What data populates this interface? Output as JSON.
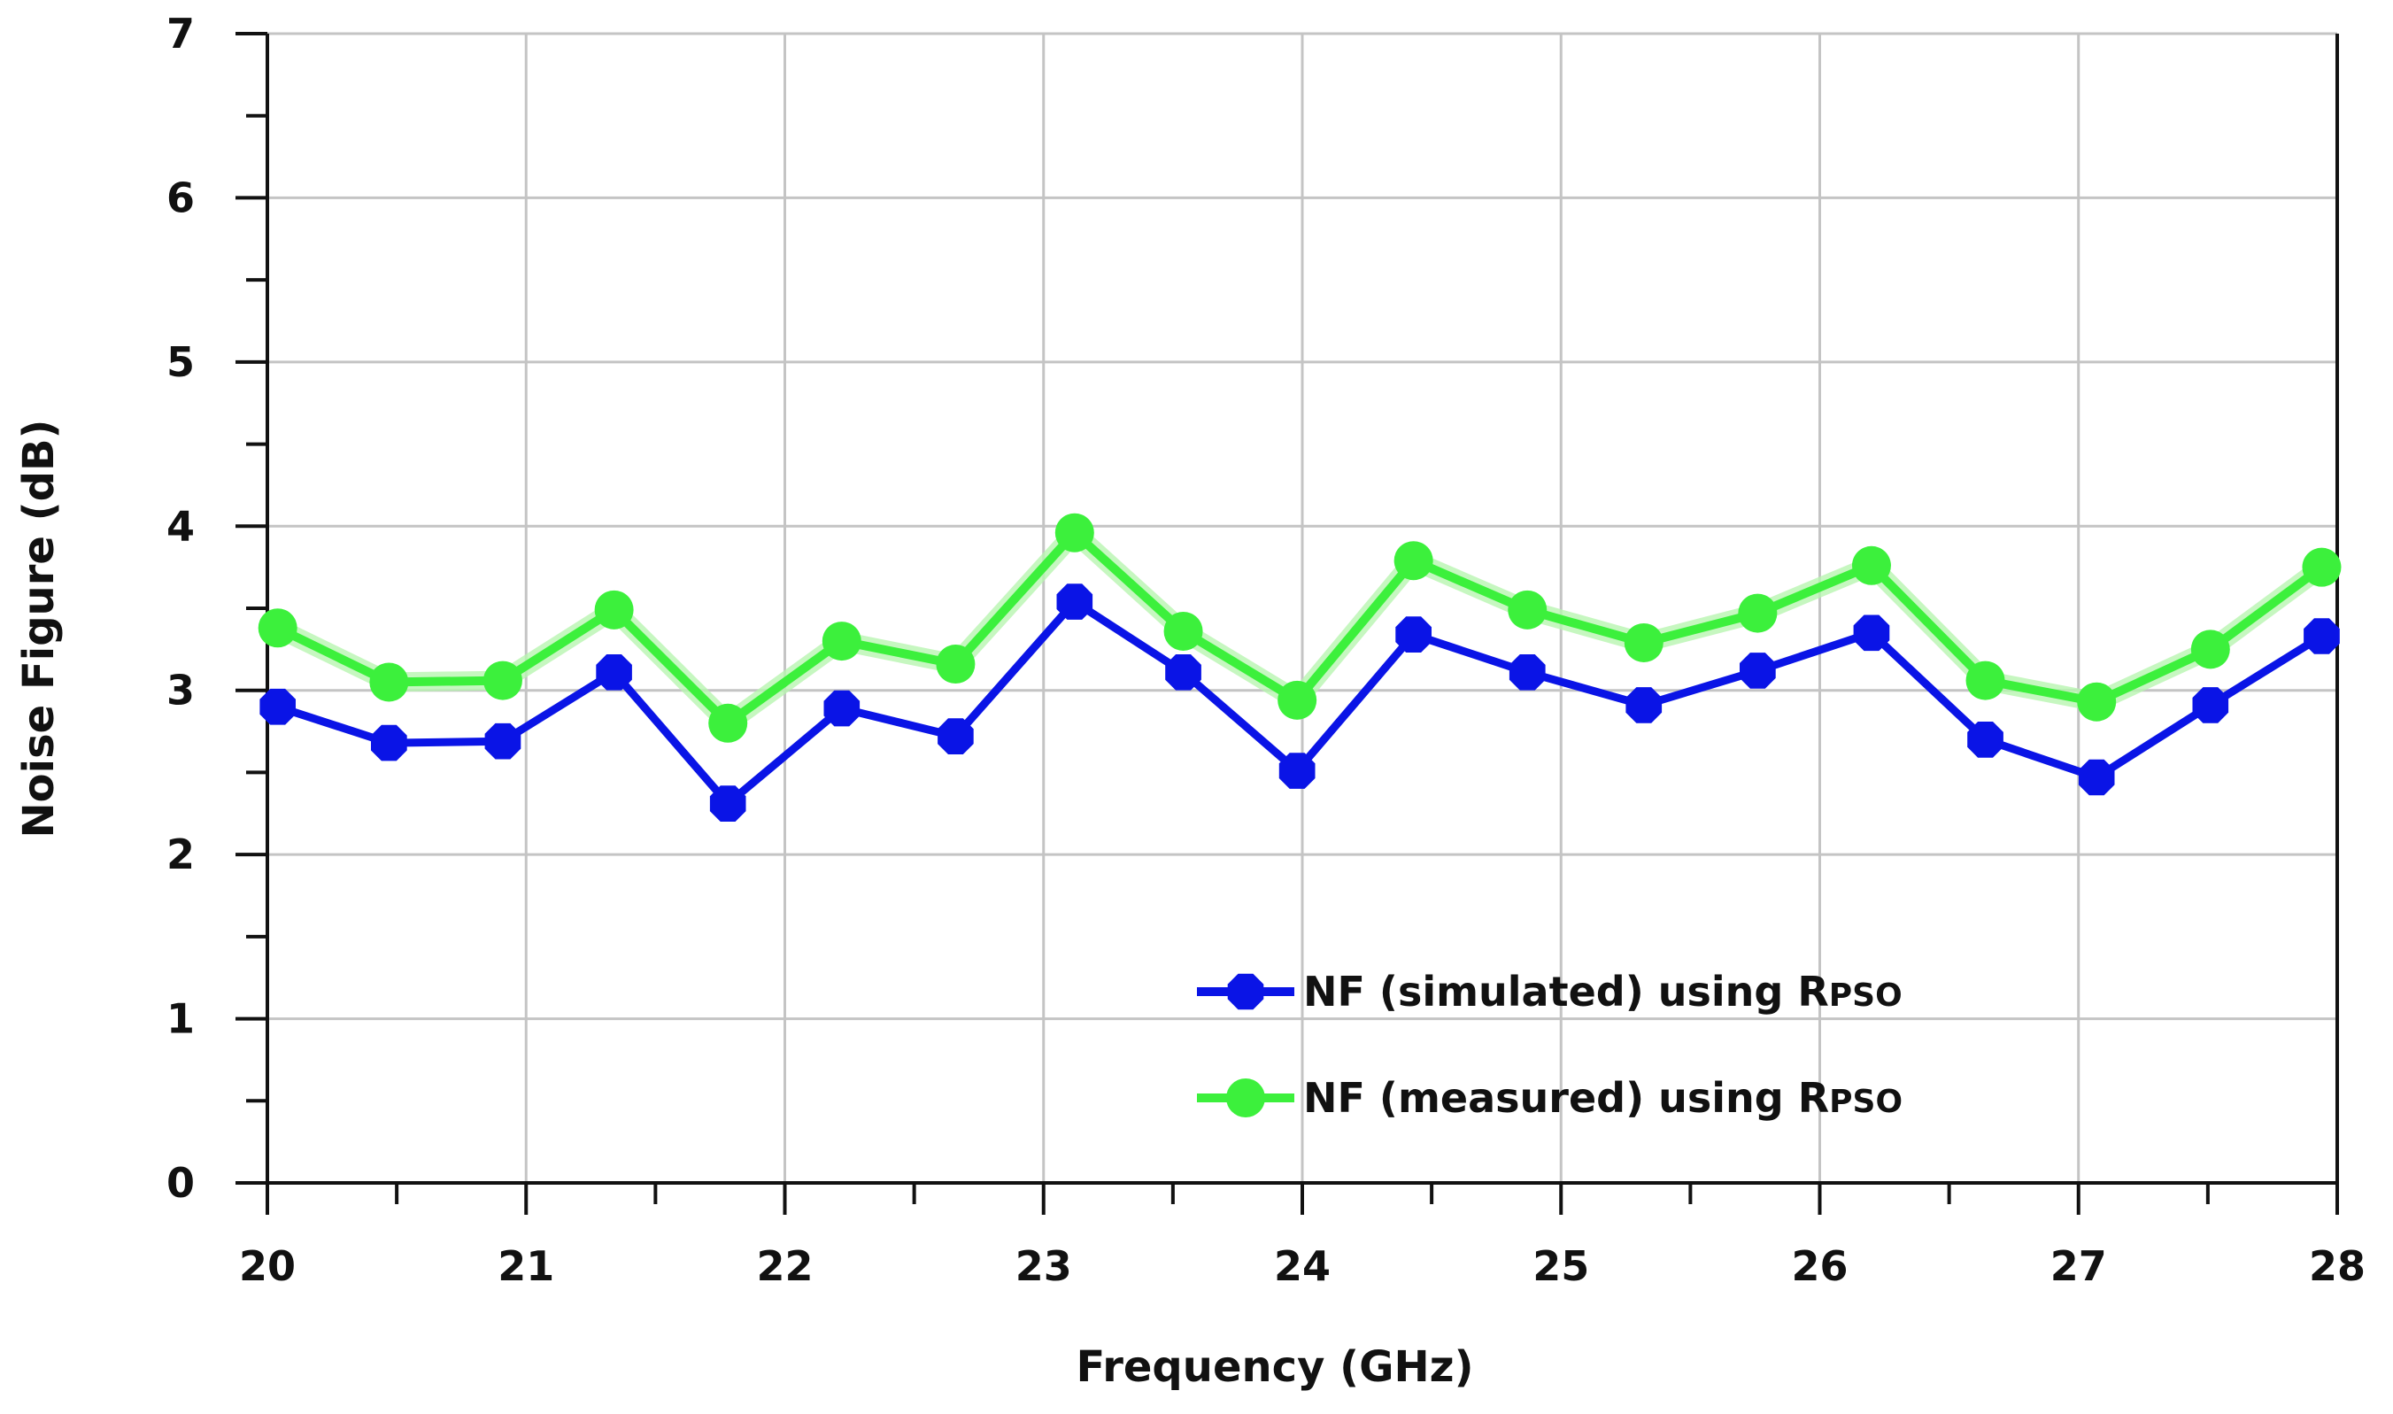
{
  "chart_data": {
    "type": "line",
    "xlabel": "Frequency (GHz)",
    "ylabel": "Noise Figure (dB)",
    "xlim": [
      20,
      28
    ],
    "ylim": [
      0,
      7
    ],
    "xticks": [
      20,
      21,
      22,
      23,
      24,
      25,
      26,
      27,
      28
    ],
    "yticks": [
      0,
      1,
      2,
      3,
      4,
      5,
      6,
      7
    ],
    "grid": true,
    "legend_position": "bottom-center",
    "series": [
      {
        "name": "NF (simulated) using RPSO",
        "legend_main": "NF (simulated) using R",
        "legend_sub": "PSO",
        "color": "#0a14e6",
        "marker": "octagon",
        "x": [
          20.04,
          20.47,
          20.91,
          21.34,
          21.78,
          22.22,
          22.66,
          23.12,
          23.54,
          23.98,
          24.43,
          24.87,
          25.32,
          25.76,
          26.2,
          26.64,
          27.07,
          27.51,
          27.94
        ],
        "values": [
          2.9,
          2.68,
          2.69,
          3.11,
          2.31,
          2.89,
          2.72,
          3.54,
          3.11,
          2.51,
          3.34,
          3.11,
          2.91,
          3.12,
          3.35,
          2.7,
          2.47,
          2.91,
          3.33
        ]
      },
      {
        "name": "NF (measured) using RPSO",
        "legend_main": "NF (measured) using R",
        "legend_sub": "PSO",
        "color": "#3cf03c",
        "marker": "circle",
        "x": [
          20.04,
          20.47,
          20.91,
          21.34,
          21.78,
          22.22,
          22.66,
          23.12,
          23.54,
          23.98,
          24.43,
          24.87,
          25.32,
          25.76,
          26.2,
          26.64,
          27.07,
          27.51,
          27.94
        ],
        "values": [
          3.38,
          3.05,
          3.06,
          3.49,
          2.8,
          3.3,
          3.16,
          3.96,
          3.36,
          2.94,
          3.79,
          3.49,
          3.29,
          3.47,
          3.76,
          3.06,
          2.93,
          3.25,
          3.75
        ]
      }
    ]
  }
}
